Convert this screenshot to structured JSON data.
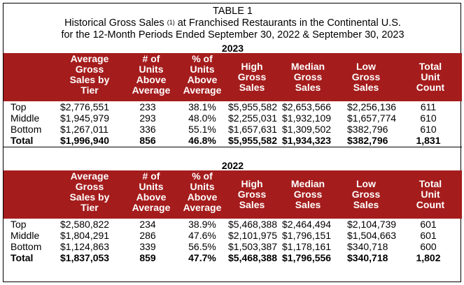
{
  "title": {
    "line1": "TABLE 1",
    "line2_pre": "Historical Gross Sales ",
    "line2_sup": "(1)",
    "line2_post": " at Franchised Restaurants in the Continental U.S.",
    "line3": "for the 12-Month Periods Ended September 30, 2022 & September 30, 2023"
  },
  "headers": [
    [
      "Average",
      "Gross",
      "Sales by",
      "Tier"
    ],
    [
      "# of",
      "Units",
      "Above",
      "Average"
    ],
    [
      "% of",
      "Units",
      "Above",
      "Average"
    ],
    [
      "High",
      "Gross",
      "Sales"
    ],
    [
      "Median",
      "Gross",
      "Sales"
    ],
    [
      "Low",
      "Gross",
      "Sales"
    ],
    [
      "Total",
      "Unit",
      "Count"
    ]
  ],
  "tables": [
    {
      "year": "2023",
      "rows": [
        {
          "label": "Top",
          "avg": "$2,776,551",
          "units": "233",
          "pct": "38.1%",
          "high": "$5,955,582",
          "median": "$2,653,566",
          "low": "$2,256,136",
          "count": "611"
        },
        {
          "label": "Middle",
          "avg": "$1,945,979",
          "units": "293",
          "pct": "48.0%",
          "high": "$2,255,031",
          "median": "$1,932,109",
          "low": "$1,657,774",
          "count": "610"
        },
        {
          "label": "Bottom",
          "avg": "$1,267,011",
          "units": "336",
          "pct": "55.1%",
          "high": "$1,657,631",
          "median": "$1,309,502",
          "low": "$382,796",
          "count": "610"
        },
        {
          "label": "Total",
          "avg": "$1,996,940",
          "units": "856",
          "pct": "46.8%",
          "high": "$5,955,582",
          "median": "$1,934,323",
          "low": "$382,796",
          "count": "1,831"
        }
      ]
    },
    {
      "year": "2022",
      "rows": [
        {
          "label": "Top",
          "avg": "$2,580,822",
          "units": "234",
          "pct": "38.9%",
          "high": "$5,468,388",
          "median": "$2,464,494",
          "low": "$2,104,739",
          "count": "601"
        },
        {
          "label": "Middle",
          "avg": "$1,804,291",
          "units": "286",
          "pct": "47.6%",
          "high": "$2,101,975",
          "median": "$1,796,151",
          "low": "$1,504,663",
          "count": "601"
        },
        {
          "label": "Bottom",
          "avg": "$1,124,863",
          "units": "339",
          "pct": "56.5%",
          "high": "$1,503,387",
          "median": "$1,178,161",
          "low": "$340,718",
          "count": "600"
        },
        {
          "label": "Total",
          "avg": "$1,837,053",
          "units": "859",
          "pct": "47.7%",
          "high": "$5,468,388",
          "median": "$1,796,556",
          "low": "$340,718",
          "count": "1,802"
        }
      ]
    }
  ],
  "colors": {
    "header_background": "#a51c1c",
    "header_text": "#ffffff"
  }
}
